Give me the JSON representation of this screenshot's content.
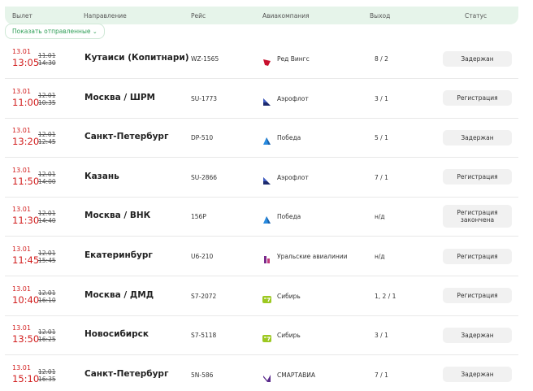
{
  "header": {
    "columns": [
      "Вылет",
      "Направление",
      "Рейс",
      "Авиакомпания",
      "Выход",
      "Статус"
    ]
  },
  "filter_button": "Показать отправленные",
  "rows": [
    {
      "date": "13.01",
      "time": "13:05",
      "old_date": "11.01",
      "old_time": "14:30",
      "destination": "Кутаиси (Копитнари)",
      "flight": "WZ-1565",
      "airline": "Ред Вингс",
      "gate": "8 / 2",
      "status": "Задержан"
    },
    {
      "date": "13.01",
      "time": "11:00",
      "old_date": "12.01",
      "old_time": "10:35",
      "destination": "Москва / ШРМ",
      "flight": "SU-1773",
      "airline": "Аэрофлот",
      "gate": "3 / 1",
      "status": "Регистрация"
    },
    {
      "date": "13.01",
      "time": "13:20",
      "old_date": "12.01",
      "old_time": "12:45",
      "destination": "Санкт-Петербург",
      "flight": "DP-510",
      "airline": "Победа",
      "gate": "5 / 1",
      "status": "Задержан"
    },
    {
      "date": "13.01",
      "time": "11:50",
      "old_date": "12.01",
      "old_time": "14:00",
      "destination": "Казань",
      "flight": "SU-2866",
      "airline": "Аэрофлот",
      "gate": "7 / 1",
      "status": "Регистрация"
    },
    {
      "date": "13.01",
      "time": "11:30",
      "old_date": "12.01",
      "old_time": "14:40",
      "destination": "Москва / ВНК",
      "flight": "156P",
      "airline": "Победа",
      "gate": "н/д",
      "status": "Регистрация закончена"
    },
    {
      "date": "13.01",
      "time": "11:45",
      "old_date": "12.01",
      "old_time": "15:45",
      "destination": "Екатеринбург",
      "flight": "U6-210",
      "airline": "Уральские авиалинии",
      "gate": "н/д",
      "status": "Регистрация"
    },
    {
      "date": "13.01",
      "time": "10:40",
      "old_date": "12.01",
      "old_time": "16:10",
      "destination": "Москва / ДМД",
      "flight": "S7-2072",
      "airline": "Сибирь",
      "gate": "1, 2 / 1",
      "status": "Регистрация"
    },
    {
      "date": "13.01",
      "time": "13:50",
      "old_date": "12.01",
      "old_time": "16:25",
      "destination": "Новосибирск",
      "flight": "S7-5118",
      "airline": "Сибирь",
      "gate": "3 / 1",
      "status": "Задержан"
    },
    {
      "date": "13.01",
      "time": "15:10",
      "old_date": "12.01",
      "old_time": "16:35",
      "destination": "Санкт-Петербург",
      "flight": "5N-586",
      "airline": "СМАРТАВИА",
      "gate": "7 / 1",
      "status": "Задержан"
    }
  ]
}
